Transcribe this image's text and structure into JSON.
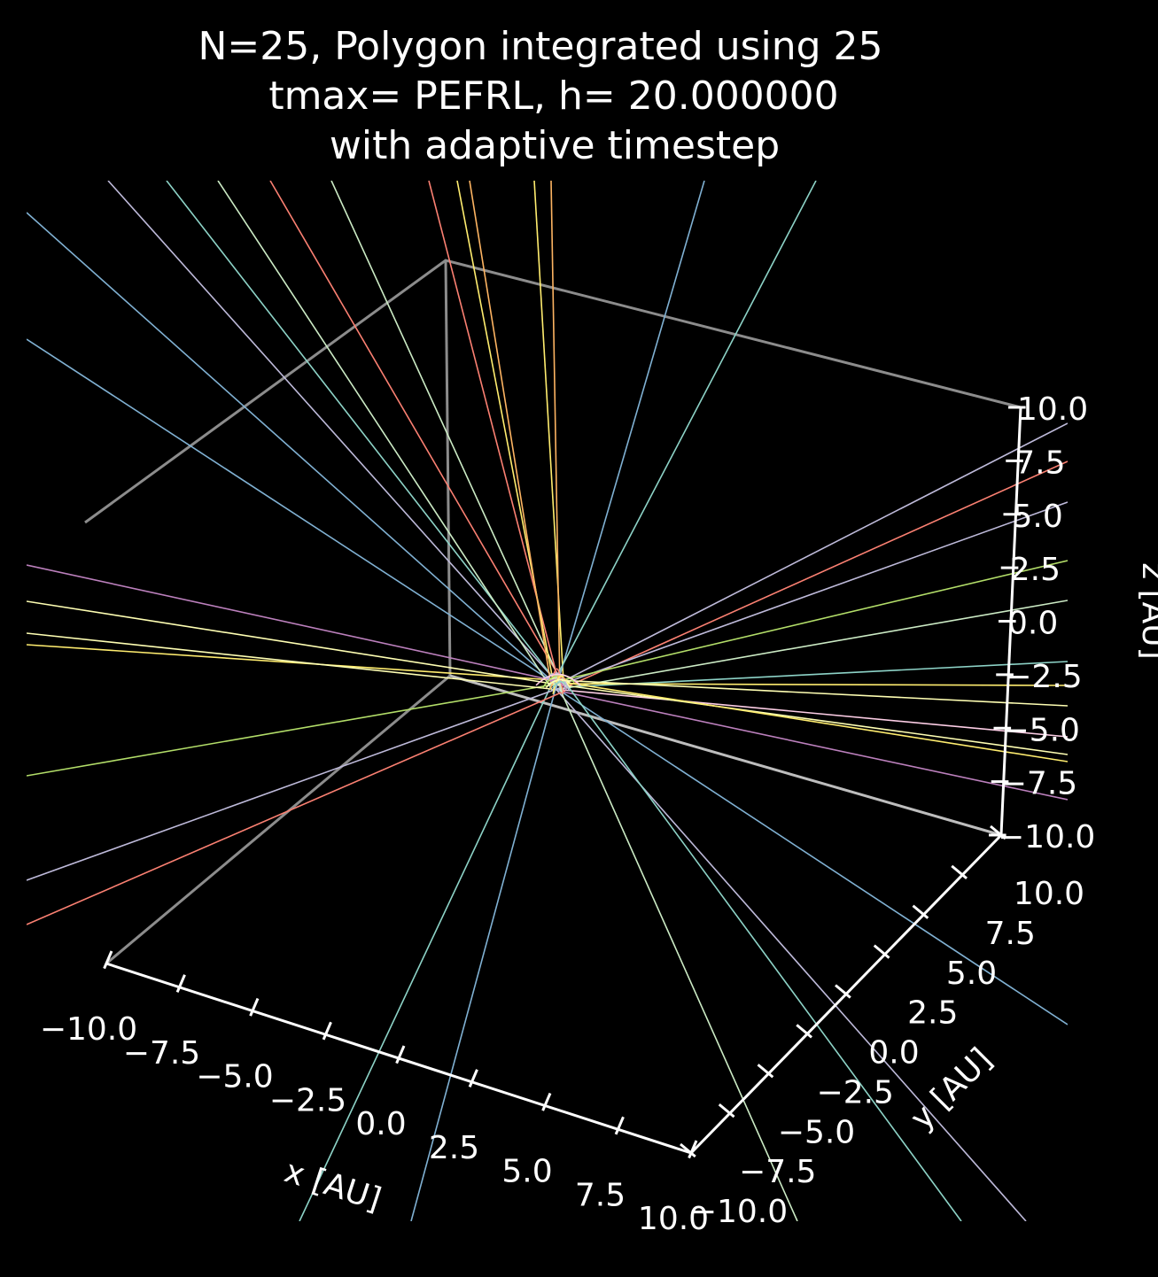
{
  "chart_data": {
    "type": "line",
    "projection": "3d",
    "title_lines": [
      "N=25, Polygon integrated using 25",
      "tmax= PEFRL, h= 20.000000",
      "with adaptive timestep"
    ],
    "xlabel": "x [AU]",
    "ylabel": "y [AU]",
    "zlabel": "z [AU]",
    "xlim": [
      -10,
      10
    ],
    "ylim": [
      -10,
      10
    ],
    "zlim": [
      -10,
      10
    ],
    "xticks": [
      "−10.0",
      "−7.5",
      "−5.0",
      "−2.5",
      "0.0",
      "2.5",
      "5.0",
      "7.5",
      "10.0"
    ],
    "yticks": [
      "−10.0",
      "−7.5",
      "−5.0",
      "−2.5",
      "0.0",
      "2.5",
      "5.0",
      "7.5",
      "10.0"
    ],
    "zticks": [
      "−10.0",
      "−7.5",
      "−5.0",
      "−2.5",
      "0.0",
      "2.5",
      "5.0",
      "7.5",
      "10.0"
    ],
    "background": "#000000",
    "pane_edge_color": "#8c8c8c",
    "axis_color": "#ffffff",
    "series_colors": [
      "#8dd3c7",
      "#ffffb3",
      "#bebada",
      "#fb8072",
      "#80b1d3",
      "#fdb462",
      "#b3de69",
      "#fccde5",
      "#d9d9d9",
      "#bc80bd",
      "#ccebc5",
      "#ffed6f"
    ],
    "trajectory_count": 25,
    "trajectory_origin": [
      0,
      0,
      0
    ]
  }
}
